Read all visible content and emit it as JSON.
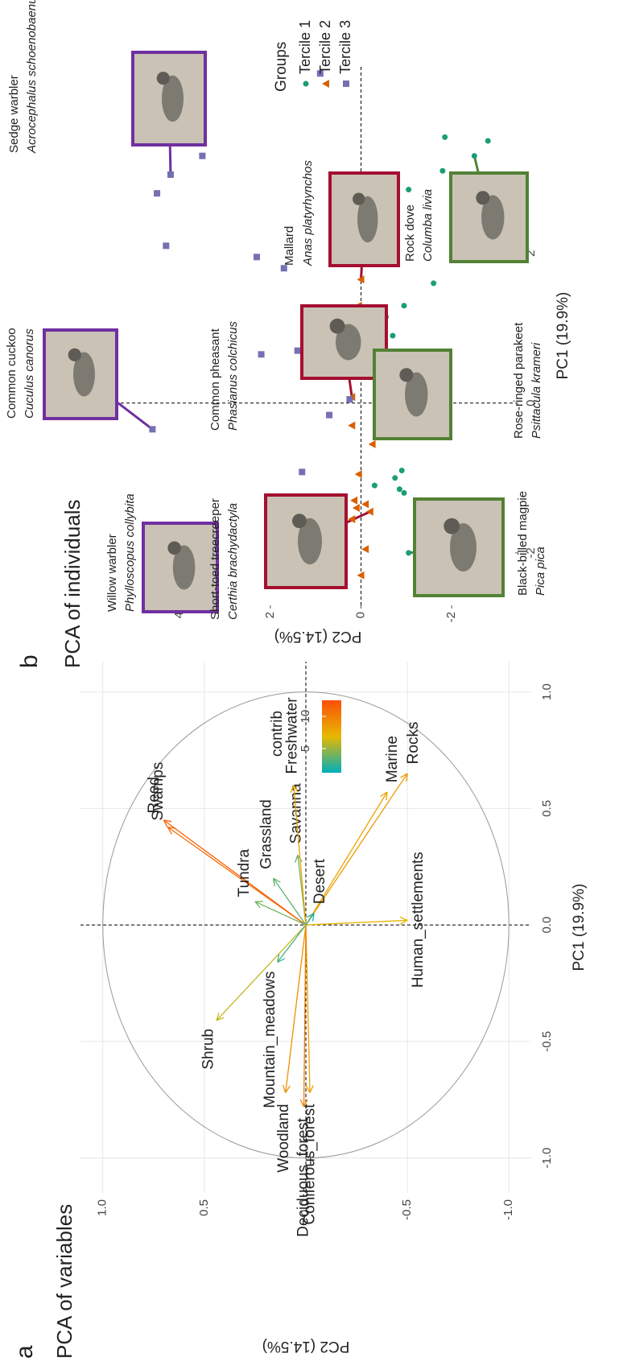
{
  "chart_data": [
    {
      "type": "biplot",
      "panel_label": "a",
      "title": "PCA of variables",
      "x_label": "PC1 (19.9%)",
      "y_label": "PC2 (14.5%)",
      "xlim": [
        -1.15,
        1.13
      ],
      "ylim": [
        -1.11,
        1.11
      ],
      "xticks": [
        {
          "value": -1,
          "label": "-1.0"
        },
        -0.5,
        {
          "value": 0,
          "label": "0.0"
        },
        0.5,
        {
          "value": 1,
          "label": "1.0"
        }
      ],
      "yticks": [
        {
          "value": -1,
          "label": "-1.0"
        },
        -0.5,
        {
          "value": 0,
          "label": "0.0"
        },
        0.5,
        {
          "value": 1,
          "label": "1.0"
        }
      ],
      "grid": true,
      "circle_radius": 1,
      "variables": [
        "Reed",
        "Swamps",
        "Shrub",
        "Tundra",
        "Mountain_meadows",
        "Grassland",
        "Savanna",
        "Freshwater",
        "Marine",
        "Rocks",
        "Human_settlements",
        "Desert",
        "Coniferous_forest",
        "Deciduous_forest",
        "Woodland"
      ],
      "x": [
        0.45,
        0.42,
        -0.41,
        0.1,
        -0.16,
        0.2,
        0.3,
        0.6,
        0.57,
        0.65,
        0.02,
        0.05,
        -0.72,
        -0.78,
        -0.72
      ],
      "y": [
        0.7,
        0.68,
        0.44,
        0.25,
        0.14,
        0.16,
        0.04,
        0.06,
        -0.4,
        -0.5,
        -0.5,
        -0.04,
        -0.02,
        0.01,
        0.1
      ],
      "contrib": [
        11.5,
        11,
        6,
        4,
        3,
        3.5,
        4,
        8,
        8,
        8.5,
        7,
        2,
        8,
        10,
        9
      ],
      "colorbar": {
        "title": "contrib",
        "ticks": [
          5,
          10
        ],
        "range": [
          1.25,
          12.5
        ],
        "colors": [
          "#00AFBB",
          "#E7B800",
          "#FC4E07"
        ]
      }
    },
    {
      "type": "scatter",
      "panel_label": "b",
      "title": "PCA of individuals",
      "x_label": "PC1 (19.9%)",
      "y_label": "PC2 (14.5%)",
      "xlim": [
        -2.7,
        4.5
      ],
      "ylim": [
        -3.4,
        5.3
      ],
      "xticks": [
        -2,
        0,
        2
      ],
      "yticks": [
        -2,
        0,
        2,
        4
      ],
      "grid": false,
      "legend": {
        "title": "Groups",
        "position": "right"
      },
      "series": [
        {
          "name": "Tercile 1",
          "color": "#1b9e77",
          "marker": "circle",
          "x": [
            -2.0,
            -1.1,
            -1.0,
            -1.15,
            -1.2,
            -0.9,
            -0.1,
            0.1,
            0.45,
            0.65,
            0.9,
            1.15,
            1.3,
            1.6,
            2.1,
            2.85,
            3.1,
            3.3,
            3.5,
            3.55
          ],
          "y": [
            -1.05,
            -0.3,
            -0.75,
            -0.85,
            -0.95,
            -0.9,
            -0.7,
            -0.8,
            -1.05,
            -0.9,
            -0.7,
            -0.55,
            -0.95,
            -1.6,
            -2.6,
            -1.05,
            -1.8,
            -2.5,
            -2.8,
            -1.85
          ]
        },
        {
          "name": "Tercile 2",
          "color": "#d95f02",
          "marker": "triangle",
          "x": [
            -2.3,
            -1.95,
            -1.55,
            -1.45,
            -1.4,
            -1.35,
            -1.3,
            -0.95,
            -0.55,
            -0.4,
            -0.3,
            0.08,
            0.55,
            0.85,
            1.3,
            1.65
          ],
          "y": [
            0.0,
            -0.1,
            0.2,
            -0.2,
            0.1,
            -0.1,
            0.15,
            0.05,
            -0.25,
            -0.6,
            0.2,
            0.2,
            0.0,
            -0.1,
            0.05,
            0.0
          ]
        },
        {
          "name": "Tercile 3",
          "color": "#7570b3",
          "marker": "square",
          "x": [
            -1.98,
            -2.32,
            -0.92,
            -0.16,
            -0.35,
            0.05,
            0.5,
            0.65,
            0.7,
            0.75,
            1.8,
            1.95,
            2.1,
            2.8,
            3.05,
            3.3,
            4.4
          ],
          "y": [
            3.25,
            0.4,
            1.3,
            0.7,
            4.6,
            0.25,
            0.7,
            2.2,
            1.4,
            1.0,
            1.7,
            2.3,
            4.3,
            4.5,
            4.2,
            3.5,
            0.9
          ]
        }
      ],
      "birds": [
        {
          "name": "Willow warbler",
          "latin": "Phylloscopus collybita",
          "frame_color": "#7030a0"
        },
        {
          "name": "Common cuckoo",
          "latin": "Cuculus canorus",
          "frame_color": "#7030a0"
        },
        {
          "name": "Sedge warbler",
          "latin": "Acrocephalus schoenobaenus",
          "frame_color": "#7030a0"
        },
        {
          "name": "Short-toed treecreeper",
          "latin": "Certhia brachydactyla",
          "frame_color": "#a50f30"
        },
        {
          "name": "Common pheasant",
          "latin": "Phasianus colchicus",
          "frame_color": "#a50f30"
        },
        {
          "name": "Mallard",
          "latin": "Anas platyrhynchos",
          "frame_color": "#a50f30"
        },
        {
          "name": "Black-billed magpie",
          "latin": "Pica pica",
          "frame_color": "#538135"
        },
        {
          "name": "Rose-ringed parakeet",
          "latin": "Psittacula krameri",
          "frame_color": "#538135"
        },
        {
          "name": "Rock dove",
          "latin": "Columba livia",
          "frame_color": "#538135"
        }
      ]
    }
  ]
}
